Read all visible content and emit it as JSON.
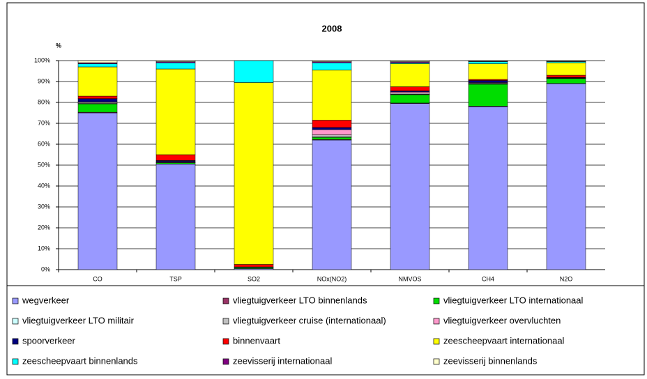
{
  "chart_data": {
    "type": "stacked_bar",
    "title": "2008",
    "y_label": "%",
    "categories": [
      "CO",
      "TSP",
      "SO2",
      "NOx(NO2)",
      "NMVOS",
      "CH4",
      "N2O"
    ],
    "ylim": [
      0,
      100
    ],
    "yticks": [
      {
        "value": 0,
        "label": "0%"
      },
      {
        "value": 10,
        "label": "10%"
      },
      {
        "value": 20,
        "label": "20%"
      },
      {
        "value": 30,
        "label": "30%"
      },
      {
        "value": 40,
        "label": "40%"
      },
      {
        "value": 50,
        "label": "50%"
      },
      {
        "value": 60,
        "label": "60%"
      },
      {
        "value": 70,
        "label": "70%"
      },
      {
        "value": 80,
        "label": "80%"
      },
      {
        "value": 90,
        "label": "90%"
      },
      {
        "value": 100,
        "label": "100%"
      }
    ],
    "grid": true,
    "series": [
      {
        "name": "wegverkeer",
        "color": "#9999ff",
        "values": [
          75,
          50.5,
          0.5,
          62,
          79.5,
          78,
          89
        ]
      },
      {
        "name": "vliegtuigverkeer LTO binnenlands",
        "color": "#993366",
        "values": [
          0.3,
          0.1,
          0,
          0.3,
          0.2,
          0.2,
          0.1
        ]
      },
      {
        "name": "vliegtuigverkeer LTO internationaal",
        "color": "#00dd00",
        "values": [
          4,
          0.5,
          0.5,
          1,
          4,
          10.5,
          2.3
        ]
      },
      {
        "name": "vliegtuigverkeer LTO militair",
        "color": "#ccffff",
        "values": [
          0.2,
          0.1,
          0,
          0.2,
          0.2,
          0.2,
          0.1
        ]
      },
      {
        "name": "vliegtuigverkeer cruise (internationaal)",
        "color": "#c0c0c0",
        "values": [
          0.5,
          0.3,
          0,
          1,
          0.5,
          0.3,
          0.2
        ]
      },
      {
        "name": "vliegtuigverkeer overvluchten",
        "color": "#ff99cc",
        "values": [
          0.3,
          0.2,
          0,
          2.5,
          0.6,
          0.3,
          0.1
        ]
      },
      {
        "name": "spoorverkeer",
        "color": "#000080",
        "values": [
          1.5,
          0.5,
          0.3,
          1,
          0.5,
          1,
          0.2
        ]
      },
      {
        "name": "binnenvaart",
        "color": "#ff0000",
        "values": [
          1.2,
          2.8,
          1.2,
          3.5,
          2,
          0.5,
          1
        ]
      },
      {
        "name": "zeescheepvaart internationaal",
        "color": "#ffff00",
        "values": [
          14,
          41,
          87,
          24,
          11,
          7.5,
          6
        ]
      },
      {
        "name": "zeescheepvaart binnenlands",
        "color": "#00ffff",
        "values": [
          1.5,
          3,
          10.5,
          3.5,
          0.5,
          1,
          0.5
        ]
      },
      {
        "name": "zeevisserij internationaal",
        "color": "#800080",
        "values": [
          0.5,
          0.5,
          0,
          0.5,
          0.5,
          0.2,
          0.2
        ]
      },
      {
        "name": "zeevisserij binnenlands",
        "color": "#ffffcc",
        "values": [
          1,
          0.5,
          0,
          0.5,
          0.5,
          0.3,
          0.3
        ]
      }
    ]
  }
}
